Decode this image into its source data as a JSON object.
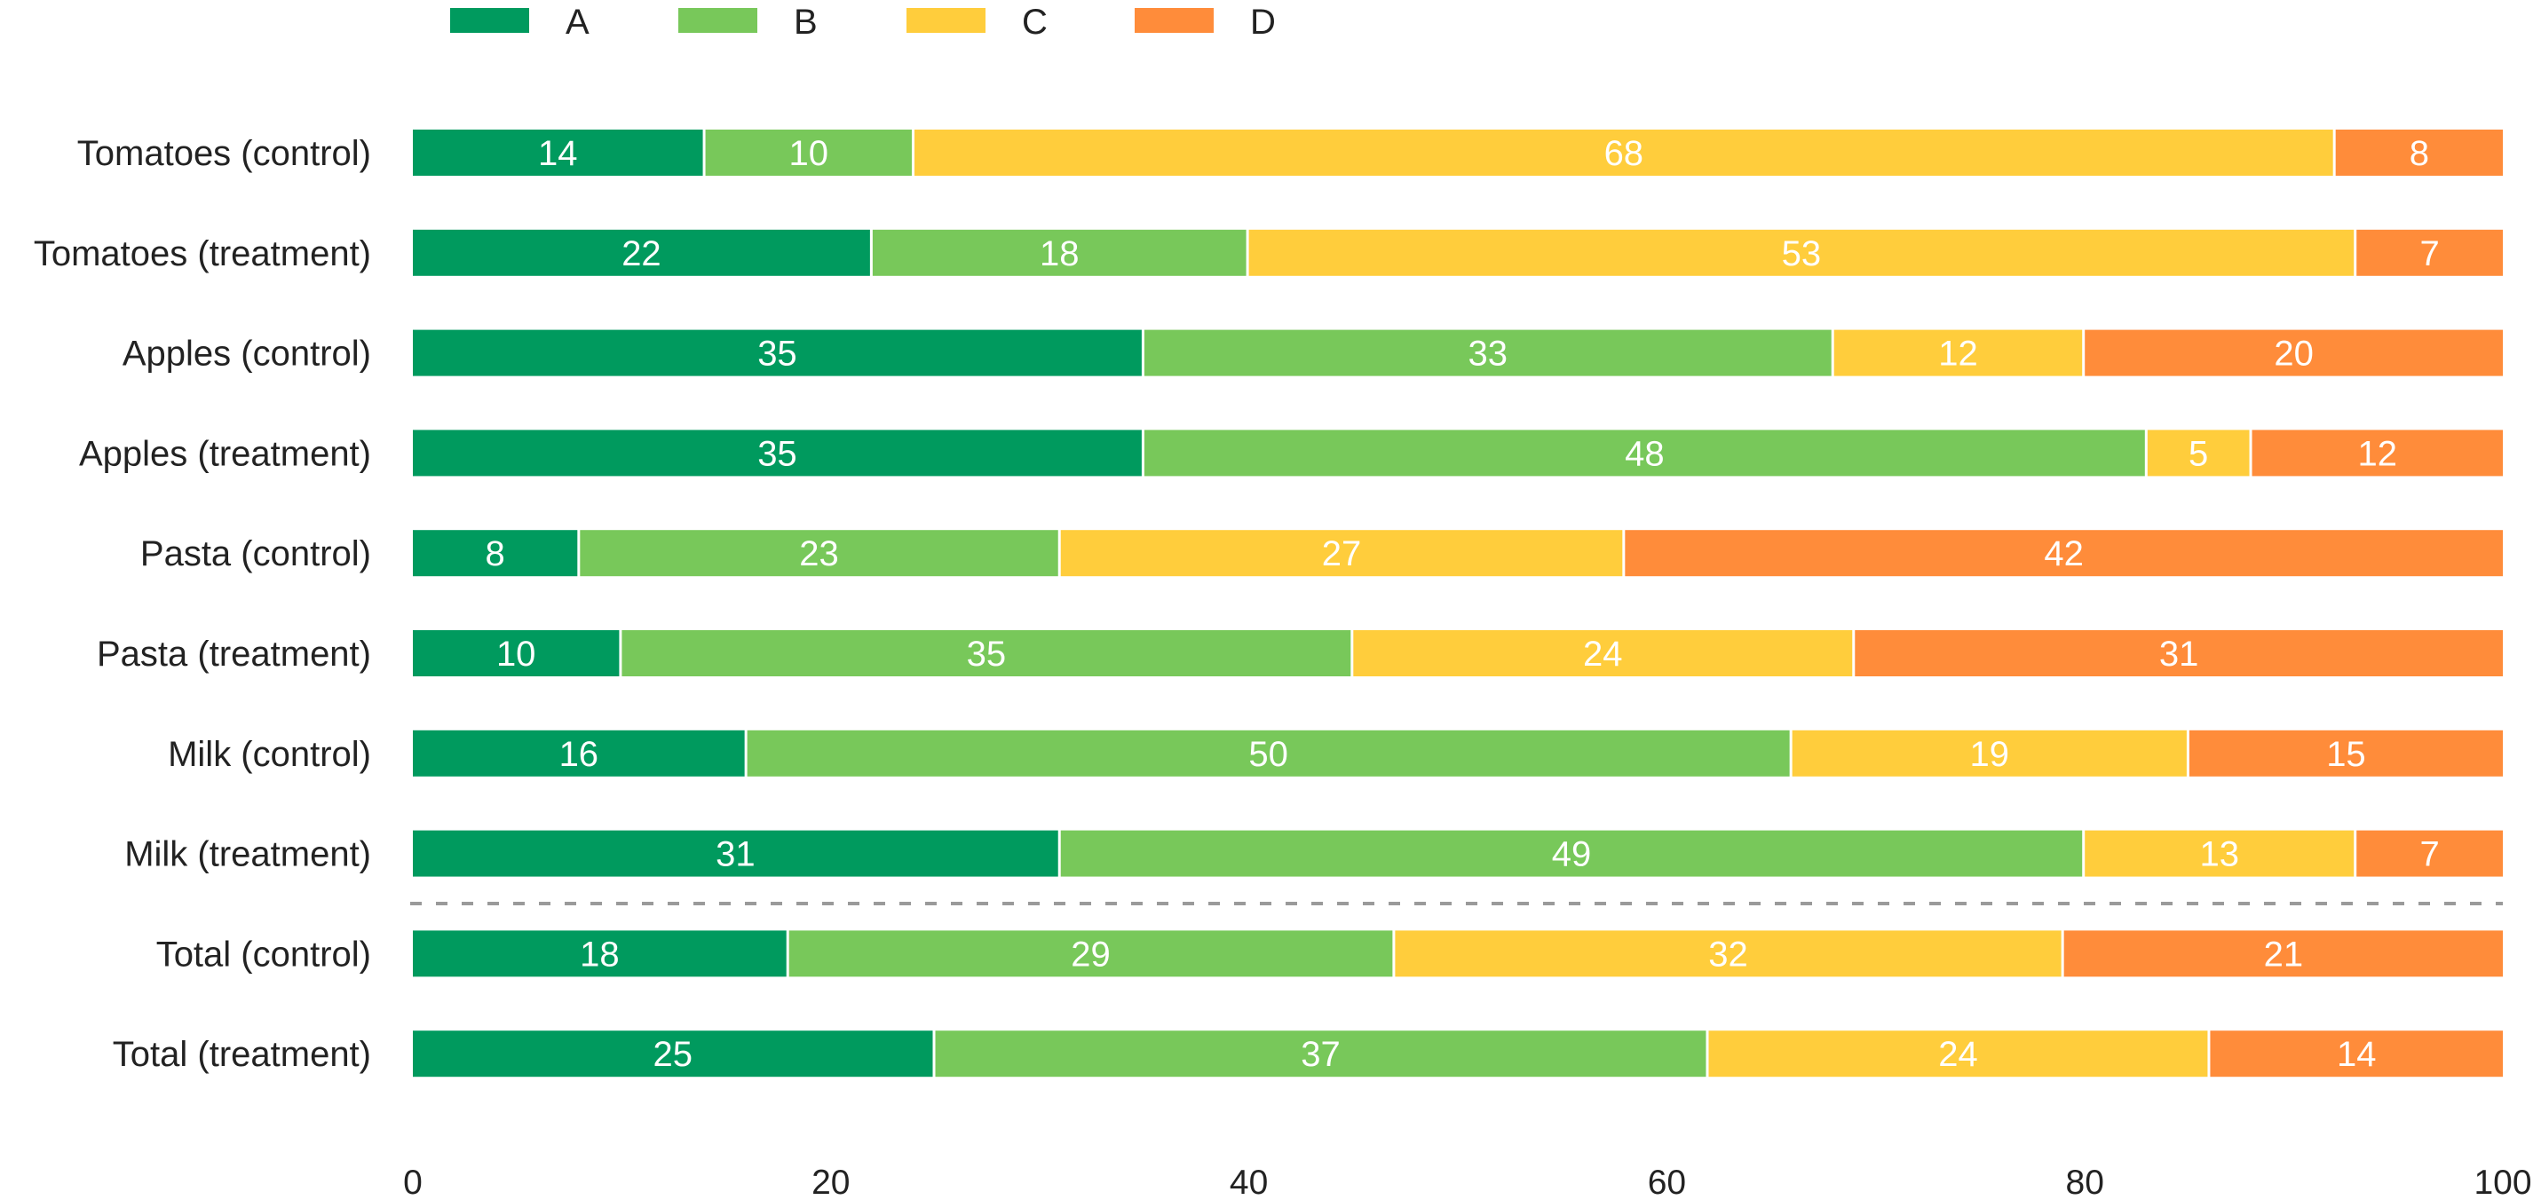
{
  "chart_data": {
    "type": "bar",
    "orientation": "horizontal",
    "stacked": true,
    "title": "",
    "xlabel": "",
    "ylabel": "",
    "xlim": [
      0,
      100
    ],
    "x_ticks": [
      "0",
      "20",
      "40",
      "60",
      "80",
      "100"
    ],
    "x_tick_values": [
      0,
      20,
      40,
      60,
      80,
      100
    ],
    "grid": false,
    "legend_position": "top-left",
    "categories": [
      "Tomatoes (control)",
      "Tomatoes (treatment)",
      "Apples (control)",
      "Apples (treatment)",
      "Pasta (control)",
      "Pasta (treatment)",
      "Milk (control)",
      "Milk (treatment)",
      "Total (control)",
      "Total (treatment)"
    ],
    "separator_after_index": 7,
    "separator_style": "dashed",
    "series": [
      {
        "name": "A",
        "color": "#009a5e",
        "values": [
          14,
          22,
          35,
          35,
          8,
          10,
          16,
          31,
          18,
          25
        ]
      },
      {
        "name": "B",
        "color": "#78c85a",
        "values": [
          10,
          18,
          33,
          48,
          23,
          35,
          50,
          49,
          29,
          37
        ]
      },
      {
        "name": "C",
        "color": "#ffcd3c",
        "values": [
          68,
          53,
          12,
          5,
          27,
          24,
          19,
          13,
          32,
          24
        ]
      },
      {
        "name": "D",
        "color": "#ff8c3a",
        "values": [
          8,
          7,
          20,
          12,
          42,
          31,
          15,
          7,
          21,
          14
        ]
      }
    ],
    "data_labels": true,
    "separator_color": "#9a9a9a"
  }
}
